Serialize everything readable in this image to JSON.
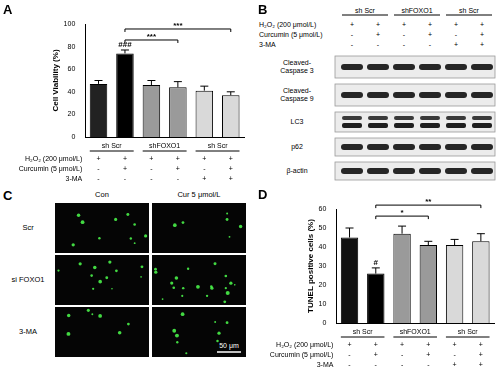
{
  "chart_data": [
    {
      "type": "bar",
      "title": "A",
      "y_label": "Cell Viability (%)",
      "categories": [
        null,
        null,
        null,
        null,
        null,
        null
      ],
      "values": [
        47,
        74,
        46,
        44,
        41,
        37
      ],
      "errors": [
        3,
        3,
        4,
        5,
        4,
        3
      ],
      "colors": [
        "#222222",
        "#000000",
        "#9a9a9a",
        "#9a9a9a",
        "#d9d9d9",
        "#d9d9d9"
      ],
      "ylim": [
        0,
        100
      ],
      "yticks": [
        0,
        20,
        40,
        60,
        80,
        100
      ],
      "grid": false,
      "tick_labels": "y",
      "annotations": [
        {
          "text": "###",
          "at": 1
        },
        {
          "text": "***",
          "from": 1,
          "to": 3
        },
        {
          "text": "***",
          "from": 1,
          "to": 5
        }
      ],
      "conditions": {
        "groups": [
          {
            "label": "sh Scr",
            "span": [
              0,
              1
            ]
          },
          {
            "label": "shFOXO1",
            "span": [
              2,
              3
            ]
          },
          {
            "label": "sh Scr",
            "span": [
              4,
              5
            ]
          }
        ],
        "rows": [
          {
            "label": "H₂O₂ (200 μmol/L)",
            "marks": [
              "+",
              "+",
              "+",
              "+",
              "+",
              "+"
            ]
          },
          {
            "label": "Curcumin (5 μmol/L)",
            "marks": [
              "-",
              "+",
              "-",
              "+",
              "-",
              "+"
            ]
          },
          {
            "label": "3-MA",
            "marks": [
              "-",
              "-",
              "-",
              "-",
              "+",
              "+"
            ]
          }
        ]
      }
    },
    {
      "type": "bar",
      "title": "D",
      "y_label": "TUNEL positive cells (%)",
      "categories": [
        null,
        null,
        null,
        null,
        null,
        null
      ],
      "values": [
        45,
        26,
        47,
        41,
        41,
        43
      ],
      "errors": [
        5,
        3,
        4,
        2,
        3,
        4
      ],
      "colors": [
        "#111111",
        "#000000",
        "#9a9a9a",
        "#9a9a9a",
        "#d9d9d9",
        "#d9d9d9"
      ],
      "ylim": [
        0,
        60
      ],
      "yticks": [
        0,
        10,
        20,
        30,
        40,
        50,
        60
      ],
      "grid": false,
      "tick_labels": "y",
      "annotations": [
        {
          "text": "#",
          "at": 1
        },
        {
          "text": "*",
          "from": 1,
          "to": 3
        },
        {
          "text": "**",
          "from": 1,
          "to": 5
        }
      ],
      "conditions": {
        "groups": [
          {
            "label": "sh Scr",
            "span": [
              0,
              1
            ]
          },
          {
            "label": "shFOXO1",
            "span": [
              2,
              3
            ]
          },
          {
            "label": "sh Scr",
            "span": [
              4,
              5
            ]
          }
        ],
        "rows": [
          {
            "label": "H₂O₂ (200 μmol/L)",
            "marks": [
              "+",
              "+",
              "+",
              "+",
              "+",
              "+"
            ]
          },
          {
            "label": "Curcumin (5 μmol/L)",
            "marks": [
              "-",
              "+",
              "-",
              "+",
              "-",
              "+"
            ]
          },
          {
            "label": "3-MA",
            "marks": [
              "-",
              "-",
              "-",
              "-",
              "+",
              "+"
            ]
          }
        ]
      }
    }
  ],
  "figure": {
    "B": {
      "letter": "B",
      "groups": [
        {
          "label": "sh Scr",
          "span": [
            0,
            1
          ]
        },
        {
          "label": "shFOXO1",
          "span": [
            2,
            3
          ]
        },
        {
          "label": "sh Scr",
          "span": [
            4,
            5
          ]
        }
      ],
      "rows": [
        {
          "label": "H₂O₂ (200 μmol/L)",
          "marks": [
            "+",
            "+",
            "+",
            "+",
            "+",
            "+"
          ]
        },
        {
          "label": "Curcumin (5 μmol/L)",
          "marks": [
            "-",
            "+",
            "-",
            "+",
            "-",
            "+"
          ]
        },
        {
          "label": "3-MA",
          "marks": [
            "-",
            "-",
            "-",
            "-",
            "+",
            "+"
          ]
        }
      ],
      "bands": [
        [
          "Cleaved-",
          "Caspase 3"
        ],
        [
          "Cleaved-",
          "Caspase 9"
        ],
        [
          "LC3"
        ],
        [
          "p62"
        ],
        [
          "β-actin"
        ]
      ]
    },
    "C": {
      "letter": "C",
      "columns": [
        "Con",
        "Cur 5 μmol/L"
      ],
      "rows": [
        "Scr",
        "si FOXO1",
        "3-MA"
      ],
      "scale_bar": "50 μm"
    }
  }
}
